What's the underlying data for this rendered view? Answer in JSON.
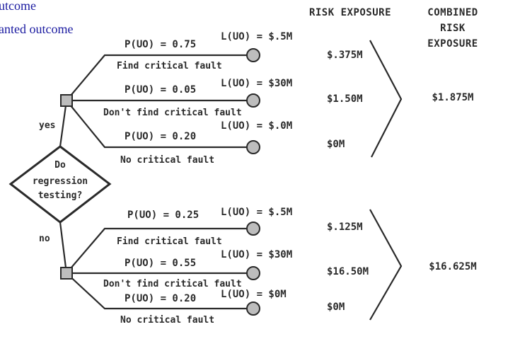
{
  "legend": {
    "line1": "utcome",
    "line2": "anted outcome"
  },
  "headers": {
    "risk_exposure": "RISK EXPOSURE",
    "combined_line1": "COMBINED",
    "combined_line2": "RISK",
    "combined_line3": "EXPOSURE"
  },
  "decision": {
    "line1": "Do",
    "line2": "regression",
    "line3": "testing?",
    "yes_label": "yes",
    "no_label": "no"
  },
  "yes_branch": {
    "outcomes": [
      {
        "prob": "P(UO) = 0.75",
        "loss": "L(UO) = $.5M",
        "caption": "Find critical fault",
        "exposure": "$.375M"
      },
      {
        "prob": "P(UO) = 0.05",
        "loss": "L(UO) = $30M",
        "caption": "Don't find critical fault",
        "exposure": "$1.50M"
      },
      {
        "prob": "P(UO) = 0.20",
        "loss": "L(UO) = $.0M",
        "caption": "No critical fault",
        "exposure": "$0M"
      }
    ],
    "combined": "$1.875M"
  },
  "no_branch": {
    "outcomes": [
      {
        "prob": "P(UO) = 0.25",
        "loss": "L(UO) = $.5M",
        "caption": "Find critical fault",
        "exposure": "$.125M"
      },
      {
        "prob": "P(UO) = 0.55",
        "loss": "L(UO) = $30M",
        "caption": "Don't find critical fault",
        "exposure": "$16.50M"
      },
      {
        "prob": "P(UO) = 0.20",
        "loss": "L(UO) = $0M",
        "caption": "No critical fault",
        "exposure": "$0M"
      }
    ],
    "combined": "$16.625M"
  }
}
